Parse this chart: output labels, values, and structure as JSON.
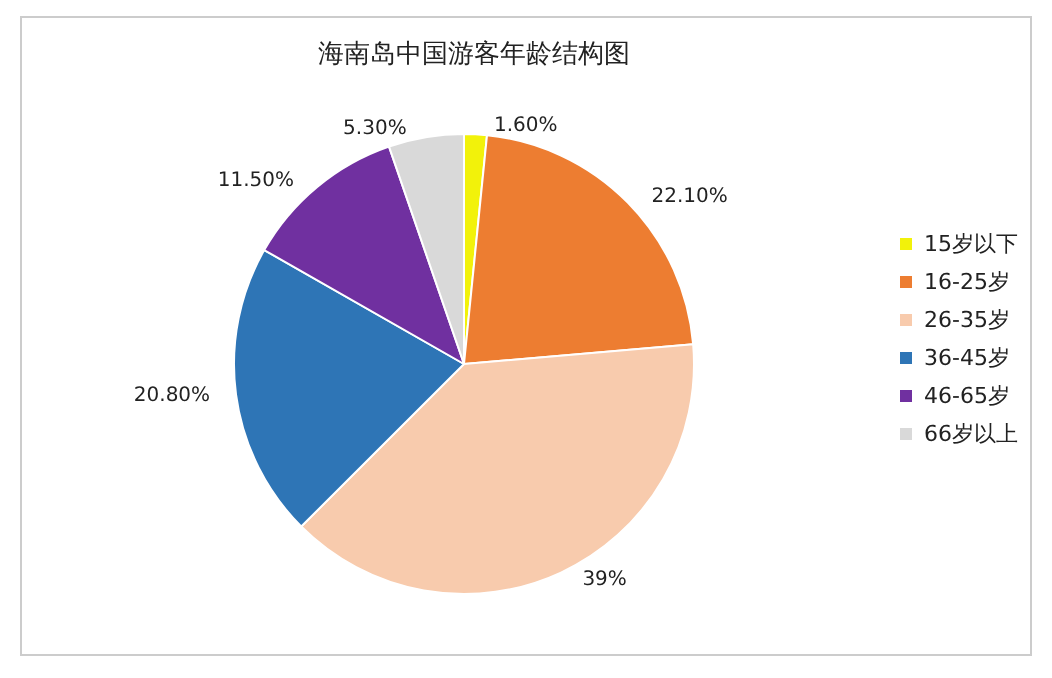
{
  "chart_data": {
    "type": "pie",
    "title": "海南岛中国游客年龄结构图",
    "categories": [
      "15岁以下",
      "16-25岁",
      "26-35岁",
      "36-45岁",
      "46-65岁",
      "66岁以上"
    ],
    "values": [
      1.6,
      22.1,
      39,
      20.8,
      11.5,
      5.3
    ],
    "value_labels": [
      "1.60%",
      "22.10%",
      "39%",
      "20.80%",
      "11.50%",
      "5.30%"
    ],
    "colors": [
      "#f2f20a",
      "#ed7d31",
      "#f8cbad",
      "#2e75b6",
      "#7030a0",
      "#d9d9d9"
    ],
    "legend": "right"
  }
}
